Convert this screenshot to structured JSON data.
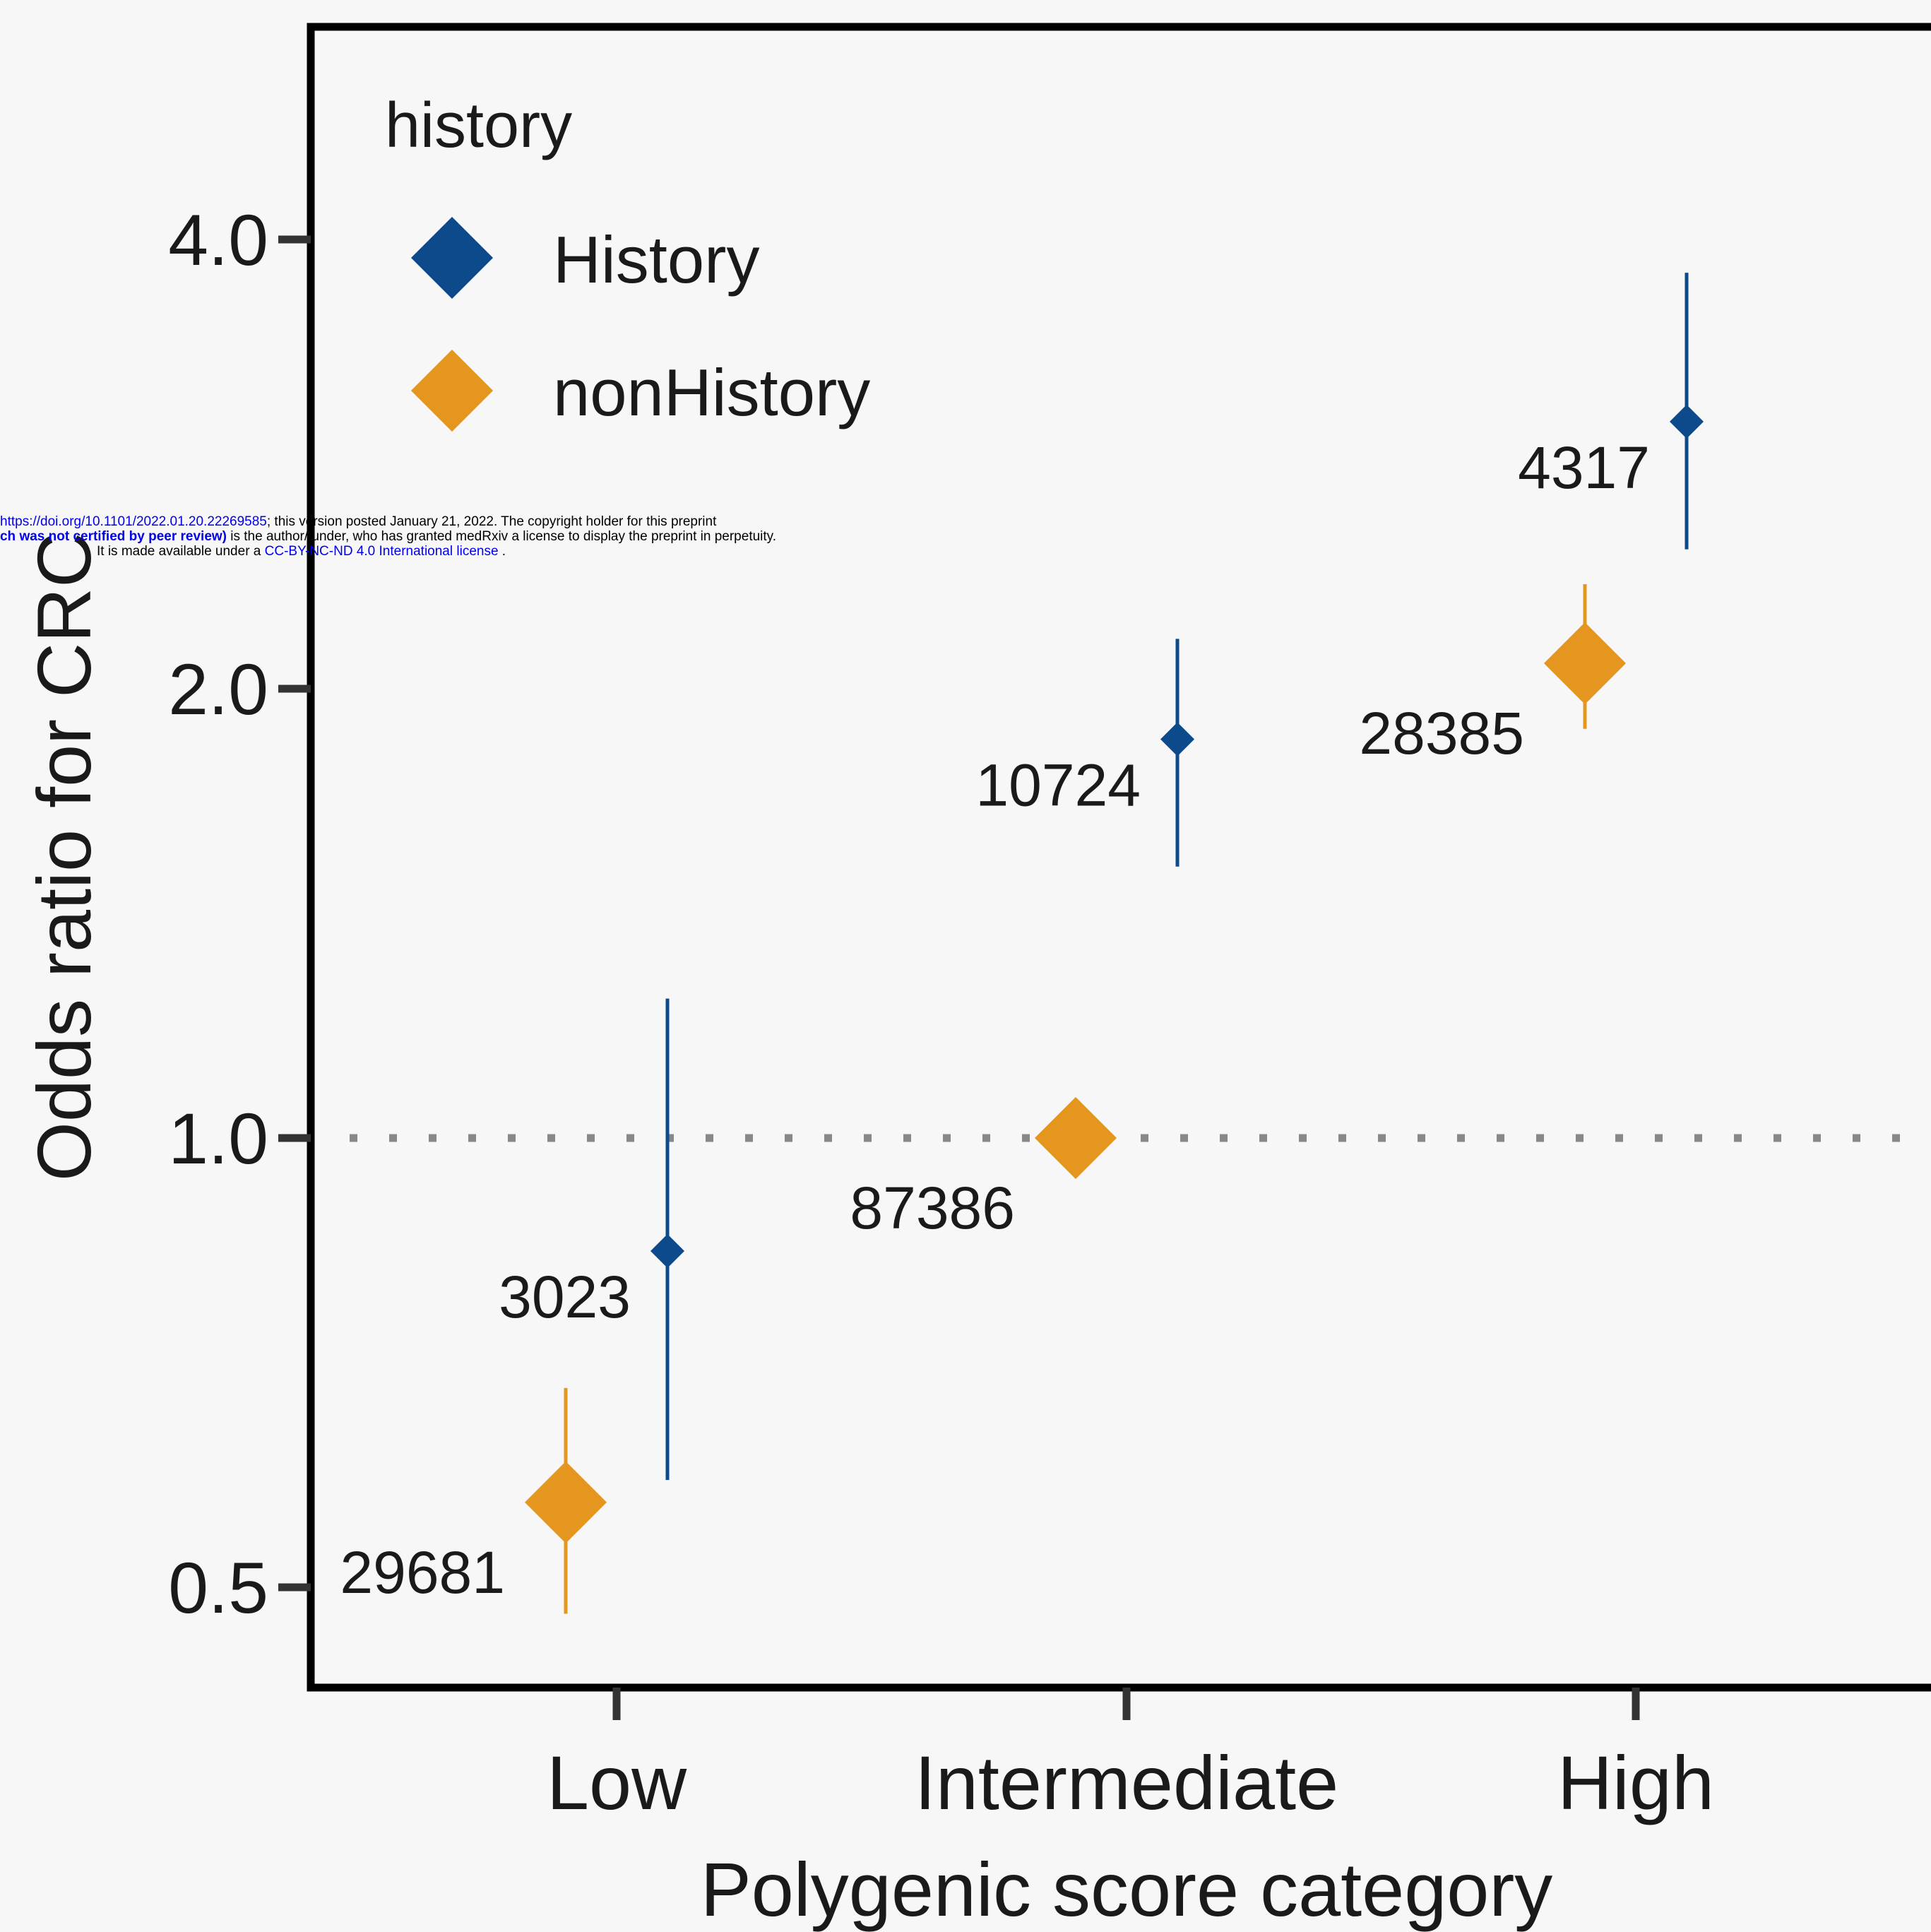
{
  "chart_data": {
    "type": "scatter",
    "subtype": "point-range (odds ratio with confidence interval)",
    "xlabel": "Polygenic score category",
    "ylabel": "Odds ratio for CRC",
    "categories": [
      "Low",
      "Intermediate",
      "High"
    ],
    "y_scale": "log",
    "yticks": [
      0.5,
      1.0,
      2.0,
      4.0
    ],
    "ytick_labels": [
      "0.5",
      "1.0",
      "2.0",
      "4.0"
    ],
    "ylim": [
      0.42,
      5.1
    ],
    "reference_line": {
      "y": 1.0,
      "style": "dotted",
      "color": "#888888"
    },
    "legend": {
      "title": "history",
      "position": "top-left",
      "entries": [
        "History",
        "nonHistory"
      ]
    },
    "series": [
      {
        "name": "History",
        "color": "#0d4a8c",
        "points": [
          {
            "category": "Low",
            "or": 0.84,
            "lo": 0.59,
            "hi": 1.24,
            "n_label": "3023"
          },
          {
            "category": "Intermediate",
            "or": 1.85,
            "lo": 1.52,
            "hi": 2.16,
            "n_label": "10724"
          },
          {
            "category": "High",
            "or": 3.02,
            "lo": 2.48,
            "hi": 3.8,
            "n_label": "4317"
          }
        ]
      },
      {
        "name": "nonHistory",
        "color": "#e5961e",
        "points": [
          {
            "category": "Low",
            "or": 0.57,
            "lo": 0.48,
            "hi": 0.68,
            "n_label": "29681"
          },
          {
            "category": "Intermediate",
            "or": 1.0,
            "lo": 1.0,
            "hi": 1.0,
            "n_label": "87386"
          },
          {
            "category": "High",
            "or": 2.08,
            "lo": 1.88,
            "hi": 2.35,
            "n_label": "28385"
          }
        ]
      }
    ],
    "grid": false
  },
  "watermark": {
    "doi_link": "https://doi.org/10.1101/2022.01.20.22269585",
    "line1_rest": "; this version posted January 21, 2022. The copyright holder for this preprint",
    "line2_bold": "(which was not certified by peer review)",
    "line2_rest": " is the author/funder, who has granted medRxiv a license to display the preprint in perpetuity.",
    "line3_pre": "It is made available under a ",
    "license_link": "CC-BY-NC-ND 4.0 International license",
    "line3_post": " ."
  }
}
